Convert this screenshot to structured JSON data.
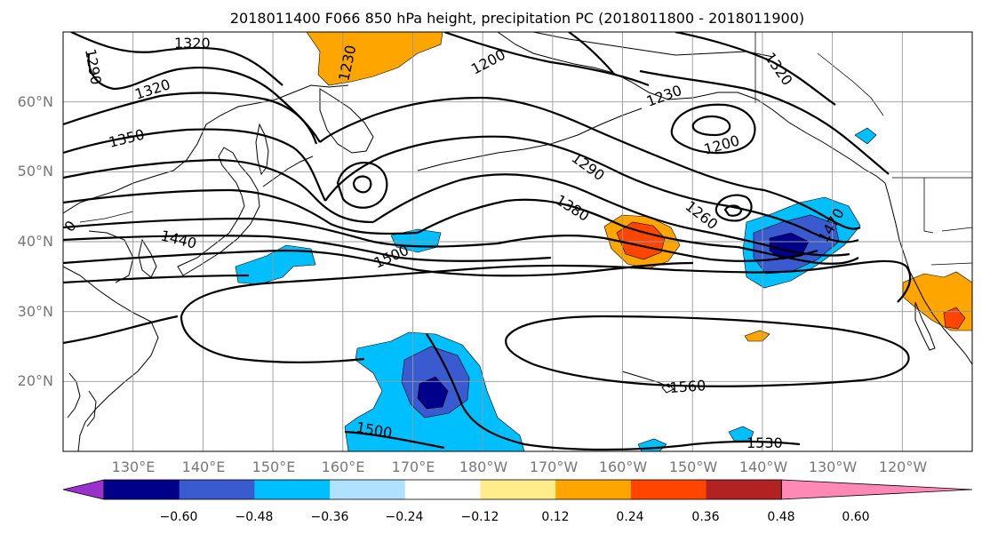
{
  "title": "2018011400 F066 850 hPa height, precipitation PC (2018011800 - 2018011900)",
  "lat_labels": [
    "60°N",
    "50°N",
    "40°N",
    "30°N",
    "20°N"
  ],
  "lon_labels": [
    "130°E",
    "140°E",
    "150°E",
    "160°E",
    "170°E",
    "180°W",
    "170°W",
    "160°W",
    "150°W",
    "140°W",
    "130°W",
    "120°W"
  ],
  "map": {
    "lon_range": [
      120,
      250
    ],
    "lat_range": [
      10,
      70
    ],
    "gridlines": true,
    "lon_grid": [
      130,
      140,
      150,
      160,
      170,
      180,
      190,
      200,
      210,
      220,
      230,
      240
    ],
    "lat_grid": [
      20,
      30,
      40,
      50,
      60
    ]
  },
  "contour_labels": [
    "1320",
    "1290",
    "1320",
    "1350",
    "1230",
    "1200",
    "1230",
    "1320",
    "1200",
    "1290",
    "1380",
    "1260",
    "1470",
    "1440",
    "1500",
    "1560",
    "1500",
    "1530",
    "0"
  ],
  "colorbar": {
    "tick_labels": [
      "−0.60",
      "−0.48",
      "−0.36",
      "−0.24",
      "−0.12",
      "0.12",
      "0.24",
      "0.36",
      "0.48",
      "0.60"
    ],
    "levels": [
      -0.6,
      -0.48,
      -0.36,
      -0.24,
      -0.12,
      0.12,
      0.24,
      0.36,
      0.48,
      0.6
    ],
    "colors": [
      "#9932cc",
      "#00008b",
      "#3a5bcf",
      "#00bfff",
      "#b0e2ff",
      "#ffffff",
      "#ffec8b",
      "#ffa500",
      "#ff4500",
      "#b22222",
      "#ff88b4"
    ]
  }
}
